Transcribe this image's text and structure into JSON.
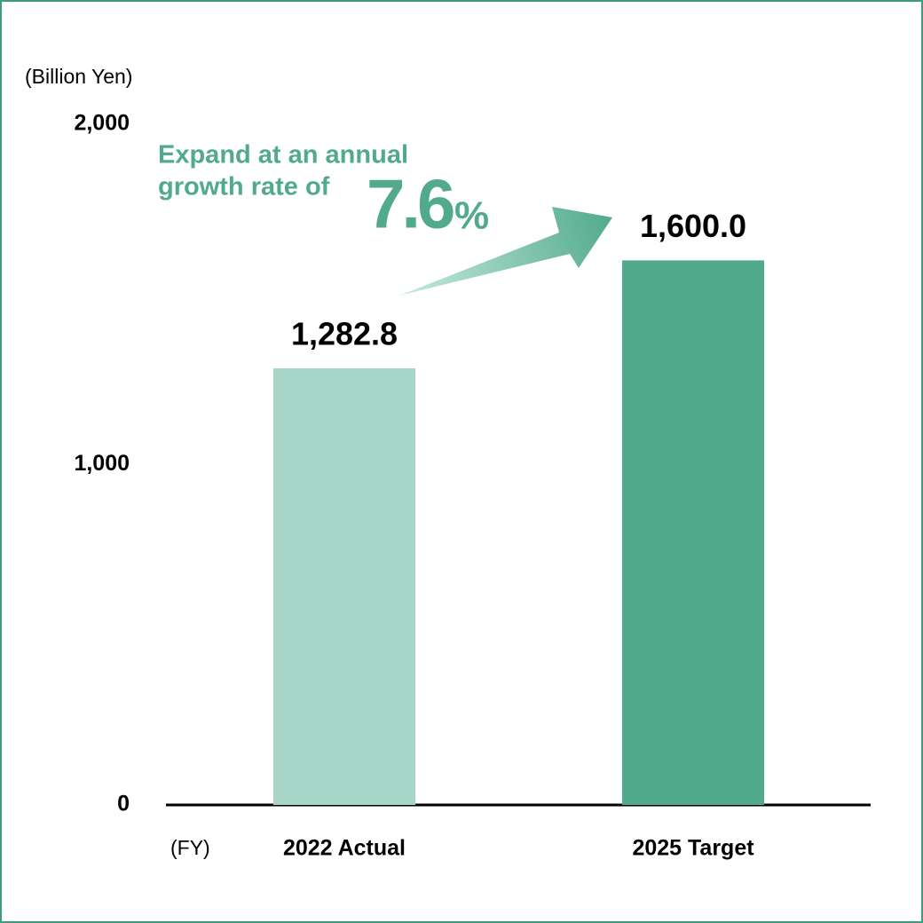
{
  "chart_data": {
    "type": "bar",
    "y_unit_label": "(Billion Yen)",
    "x_unit_label": "(FY)",
    "categories": [
      "2022 Actual",
      "2025 Target"
    ],
    "values": [
      1282.8,
      1600.0
    ],
    "value_labels": [
      "1,282.8",
      "1,600.0"
    ],
    "colors": [
      "#a7d5c8",
      "#52aa8c"
    ],
    "ylim": [
      0,
      2000
    ],
    "yticks": [
      0,
      {
        "value": 1000,
        "label": "1,000"
      },
      {
        "value": 2000,
        "label": "2,000"
      }
    ],
    "grid": false,
    "annotation": {
      "lines": [
        "Expand at an annual",
        "growth rate of"
      ],
      "rate": "7.6",
      "rate_unit": "%",
      "color": "#52aa8c"
    }
  }
}
